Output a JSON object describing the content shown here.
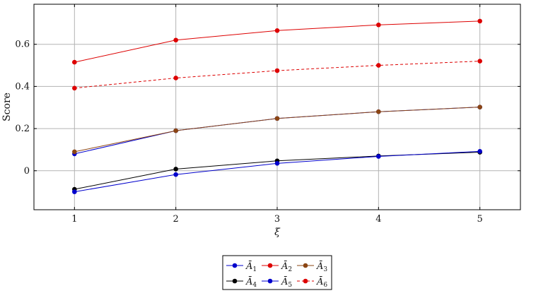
{
  "chart_data": {
    "type": "line",
    "title": "",
    "xlabel": "ξ",
    "ylabel": "Score",
    "x": [
      1,
      2,
      3,
      4,
      5
    ],
    "xlim": [
      0.6,
      5.4
    ],
    "ylim": [
      -0.185,
      0.79
    ],
    "xticks": [
      "1",
      "2",
      "3",
      "4",
      "5"
    ],
    "yticks": [
      "0",
      "0.2",
      "0.4",
      "0.6"
    ],
    "grid": true,
    "legend_position": "bottom-center",
    "series": [
      {
        "name": "Ā",
        "sub": "1",
        "color": "#0000cc",
        "dashed": false,
        "values": [
          0.08,
          0.19,
          0.248,
          0.28,
          0.302
        ]
      },
      {
        "name": "Ā",
        "sub": "2",
        "color": "#dd0000",
        "dashed": false,
        "values": [
          0.515,
          0.62,
          0.665,
          0.692,
          0.71
        ]
      },
      {
        "name": "Ā",
        "sub": "3",
        "color": "#8b4513",
        "dashed": false,
        "values": [
          0.09,
          0.19,
          0.248,
          0.28,
          0.302
        ]
      },
      {
        "name": "Ā",
        "sub": "4",
        "color": "#000000",
        "dashed": false,
        "values": [
          -0.088,
          0.008,
          0.047,
          0.07,
          0.088
        ]
      },
      {
        "name": "Ā",
        "sub": "5",
        "color": "#0000cc",
        "dashed": false,
        "values": [
          -0.1,
          -0.018,
          0.035,
          0.068,
          0.092
        ]
      },
      {
        "name": "Ā",
        "sub": "6",
        "color": "#dd0000",
        "dashed": true,
        "values": [
          0.392,
          0.44,
          0.475,
          0.5,
          0.52
        ]
      }
    ]
  }
}
